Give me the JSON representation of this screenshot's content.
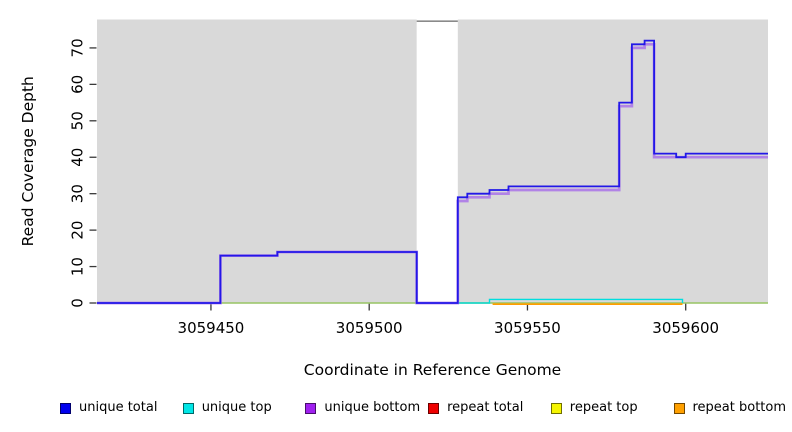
{
  "window": {
    "title": "read coverage plot"
  },
  "chart_data": {
    "type": "line",
    "subtype": "step-coverage",
    "title": "",
    "xlabel": "Coordinate in Reference Genome",
    "ylabel": "Read Coverage Depth",
    "xlim": [
      3059414,
      3059626
    ],
    "ylim": [
      0,
      77.8
    ],
    "xticks": [
      3059450,
      3059500,
      3059550,
      3059600
    ],
    "yticks": [
      0,
      10,
      20,
      30,
      40,
      50,
      60,
      70
    ],
    "grid": false,
    "plot_bg_color": "#d9d9d9",
    "tick_color": "#383838",
    "masked_region": {
      "x0": 3059515,
      "x1": 3059528,
      "fill": "#ffffff",
      "border_top_color": "#8a8a8a"
    },
    "zero_baseline": {
      "color": "#86d686",
      "y": 0
    },
    "legend_position": "bottom",
    "series": [
      {
        "name": "unique total",
        "color": "#2218e8",
        "swatch_color": "#0000ee",
        "points": [
          [
            3059414,
            0
          ],
          [
            3059453,
            13
          ],
          [
            3059471,
            14
          ],
          [
            3059515,
            0
          ],
          [
            3059528,
            29
          ],
          [
            3059531,
            30
          ],
          [
            3059538,
            31
          ],
          [
            3059544,
            32
          ],
          [
            3059579,
            55
          ],
          [
            3059583,
            71
          ],
          [
            3059587,
            72
          ],
          [
            3059590,
            41
          ],
          [
            3059597,
            40
          ],
          [
            3059600,
            41
          ]
        ],
        "end": 3059626
      },
      {
        "name": "unique top",
        "color": "#00dede",
        "swatch_color": "#00e6e6",
        "points": [
          [
            3059528,
            0
          ],
          [
            3059538,
            1
          ],
          [
            3059599,
            0
          ]
        ],
        "end": 3059599
      },
      {
        "name": "unique bottom",
        "color": "#b183e6",
        "swatch_color": "#a020f0",
        "points": [
          [
            3059414,
            0
          ],
          [
            3059453,
            13
          ],
          [
            3059471,
            14
          ],
          [
            3059515,
            0
          ],
          [
            3059528,
            28
          ],
          [
            3059531,
            29
          ],
          [
            3059538,
            30
          ],
          [
            3059544,
            31
          ],
          [
            3059579,
            54
          ],
          [
            3059583,
            70
          ],
          [
            3059587,
            71
          ],
          [
            3059590,
            40
          ]
        ],
        "end": 3059626
      },
      {
        "name": "repeat total",
        "color": "#ee0000",
        "swatch_color": "#ee0000",
        "points": [
          [
            3059414,
            0
          ]
        ],
        "end": 3059626
      },
      {
        "name": "repeat top",
        "color": "#f0f000",
        "swatch_color": "#f5f500",
        "points": [
          [
            3059414,
            0
          ]
        ],
        "end": 3059626
      },
      {
        "name": "repeat bottom",
        "color": "#ff9d00",
        "swatch_color": "#ffa000",
        "points": [
          [
            3059539,
            0
          ],
          [
            3059599,
            0
          ]
        ],
        "end": 3059599
      }
    ]
  }
}
